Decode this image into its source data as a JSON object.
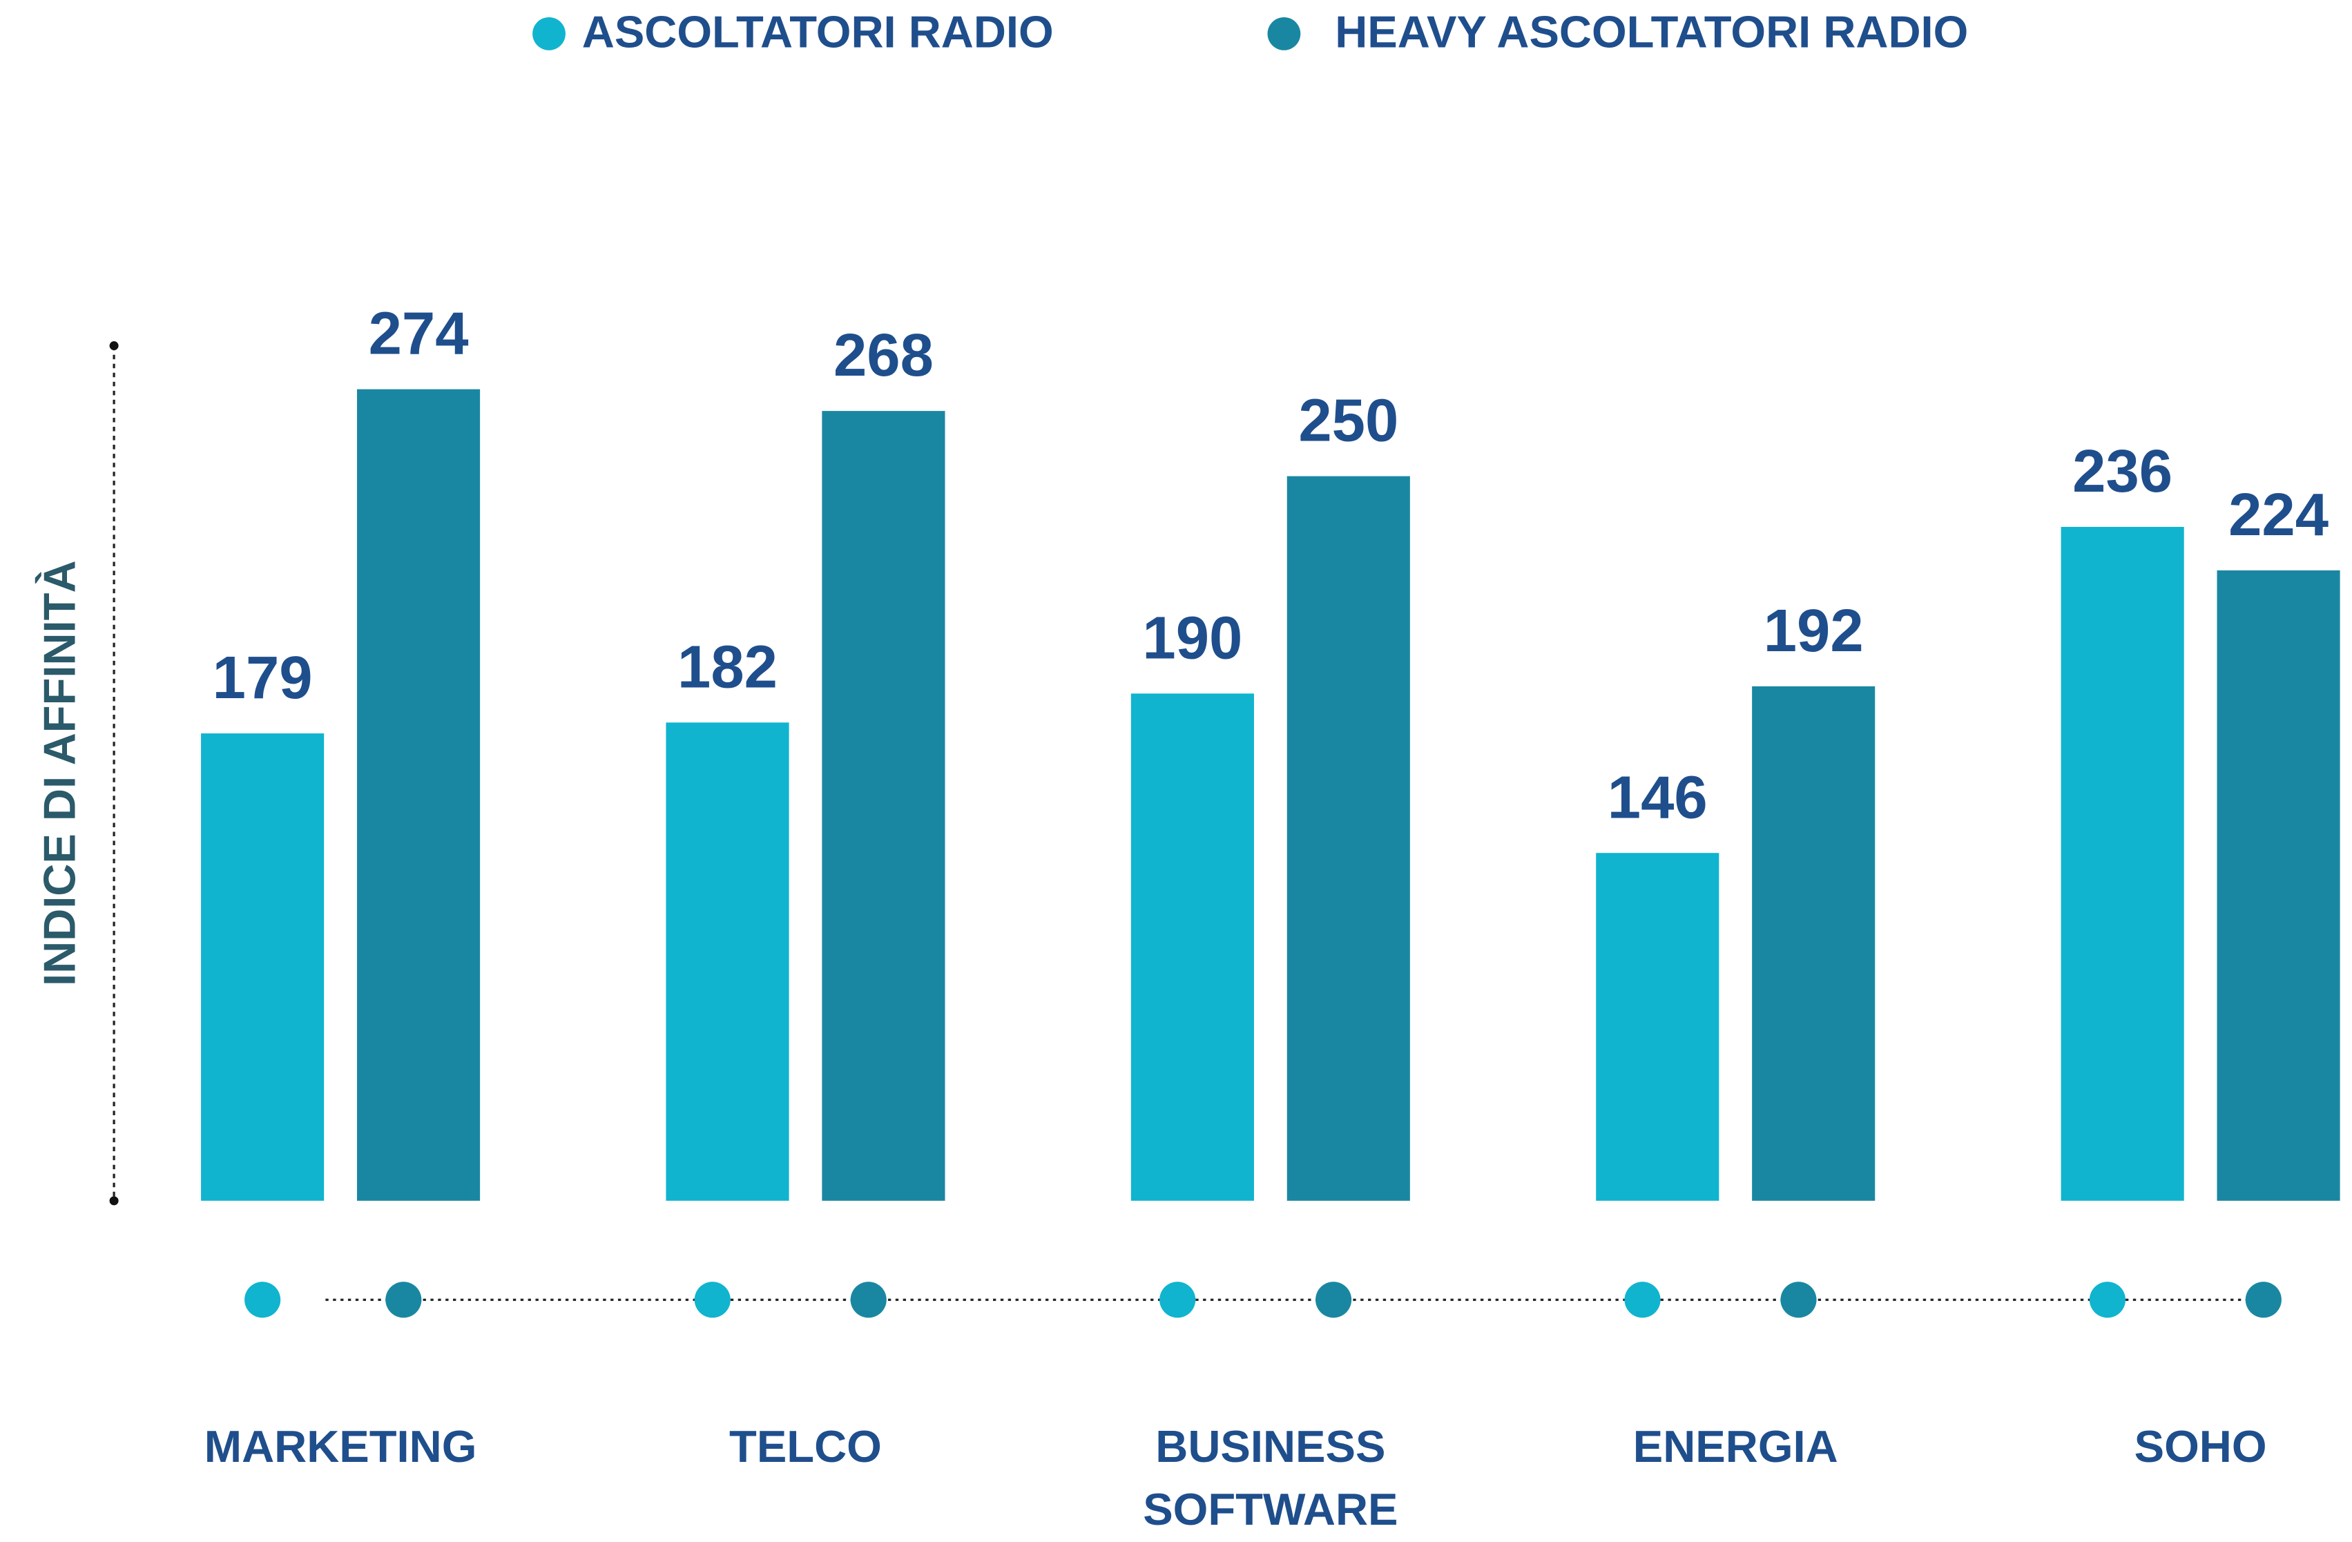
{
  "chart_data": {
    "type": "bar",
    "categories": [
      "MARKETING",
      "TELCO",
      "BUSINESS SOFTWARE",
      "ENERGIA",
      "SOHO"
    ],
    "series": [
      {
        "name": "ASCOLTATORI RADIO",
        "color": "#10b4cf",
        "values": [
          179,
          182,
          190,
          146,
          236
        ]
      },
      {
        "name": "HEAVY ASCOLTATORI RADIO",
        "color": "#1a87a2",
        "values": [
          274,
          268,
          250,
          192,
          224
        ]
      }
    ],
    "y_label": "INDICE DI AFFINITÀ",
    "ylim": [
      50,
      286
    ],
    "legend": "top"
  }
}
